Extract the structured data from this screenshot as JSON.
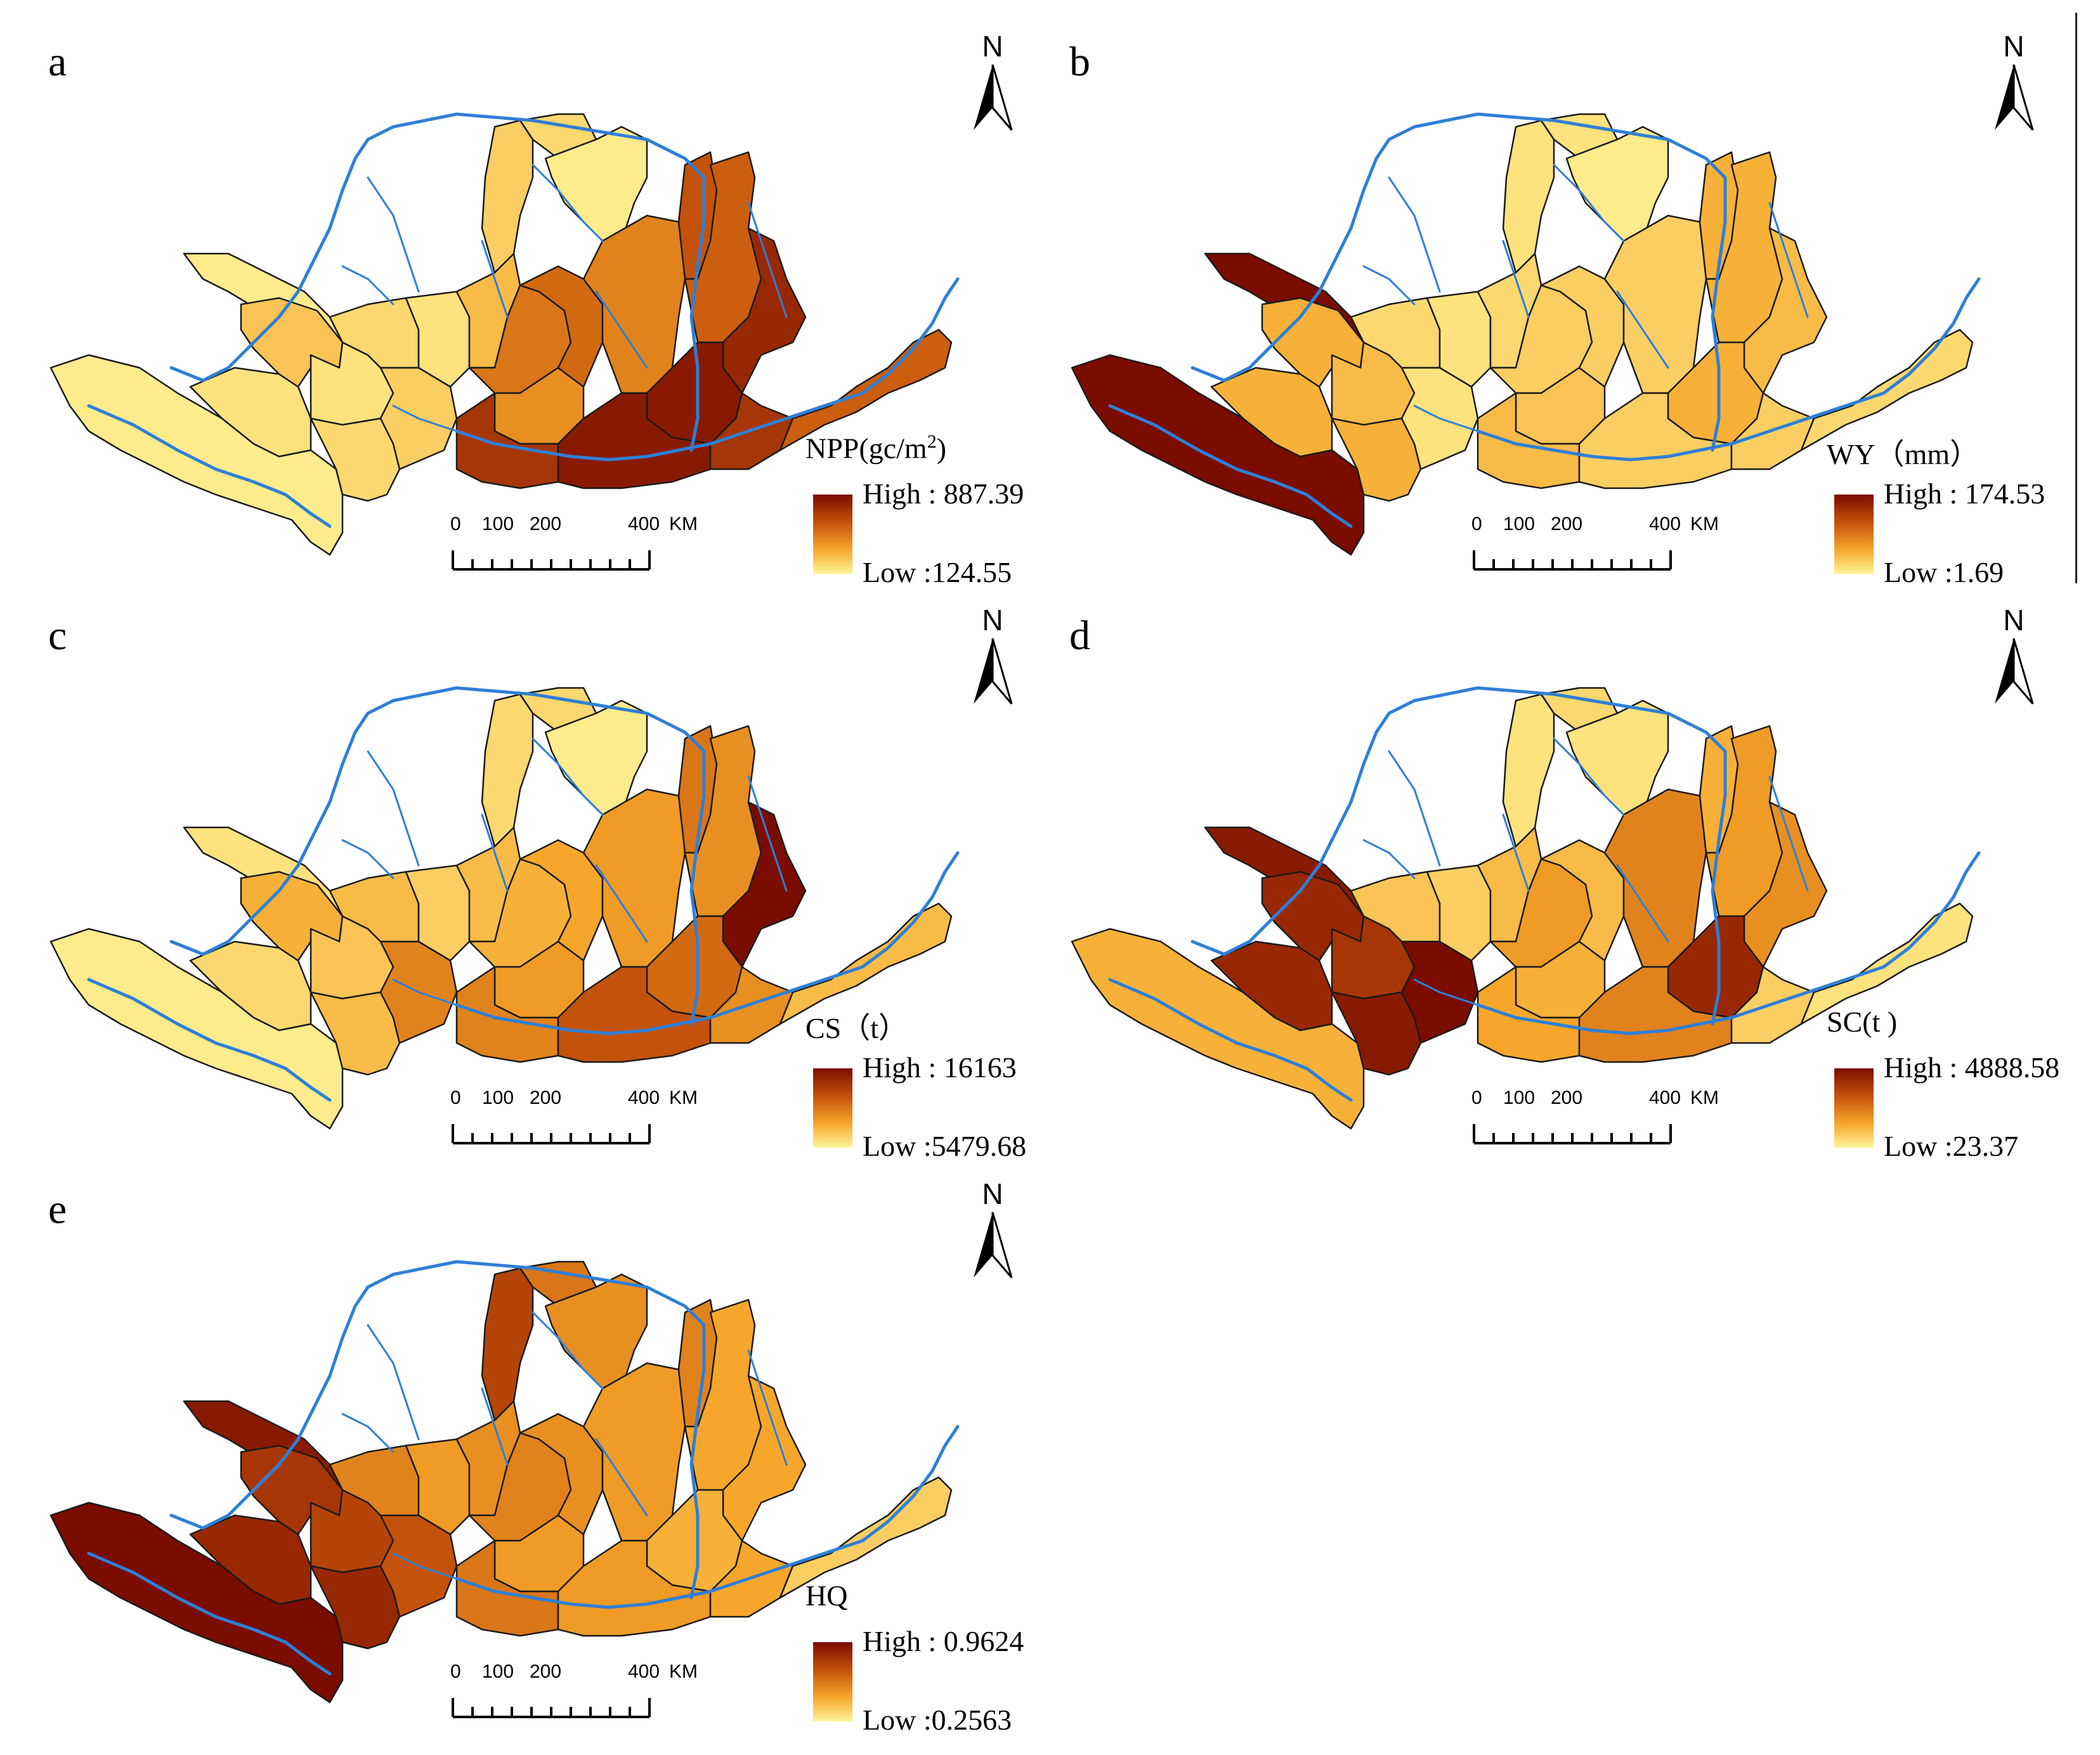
{
  "figure": {
    "scale_bar": {
      "ticks": [
        "0",
        "100",
        "200",
        "400"
      ],
      "unit": "KM"
    },
    "north_label": "N",
    "palette": {
      "low": "#fff59a",
      "mid_low": "#f6a72b",
      "mid_high": "#c4520a",
      "high": "#7a0c00"
    },
    "river_color": "#2f7fd6",
    "panels": [
      {
        "letter": "a",
        "legend": {
          "title": "NPP(gc/m",
          "title_sup": "2",
          "title_tail": ")",
          "high": "High : 887.39",
          "low": "Low :124.55"
        },
        "levels": [
          0.05,
          0.1,
          0.05,
          0.25,
          0.1,
          0.15,
          0.2,
          0.15,
          0.1,
          0.3,
          0.2,
          0.15,
          0.05,
          0.6,
          0.5,
          0.85,
          0.65,
          0.55,
          0.75,
          0.7,
          0.9,
          0.95,
          0.95,
          0.85,
          0.7
        ]
      },
      {
        "letter": "b",
        "legend": {
          "title": "WY（mm）",
          "title_sup": "",
          "title_tail": "",
          "high": "High : 174.53",
          "low": "Low :1.69"
        },
        "levels": [
          1.0,
          0.35,
          1.0,
          0.35,
          0.3,
          0.35,
          0.1,
          0.15,
          0.1,
          0.15,
          0.1,
          0.1,
          0.05,
          0.2,
          0.25,
          0.3,
          0.2,
          0.2,
          0.35,
          0.35,
          0.3,
          0.35,
          0.2,
          0.2,
          0.15
        ]
      },
      {
        "letter": "c",
        "legend": {
          "title": "CS（t）",
          "title_sup": "",
          "title_tail": "",
          "high": "High : 16163",
          "low": "Low :5479.68"
        },
        "levels": [
          0.05,
          0.15,
          0.1,
          0.35,
          0.25,
          0.3,
          0.55,
          0.3,
          0.2,
          0.3,
          0.15,
          0.15,
          0.05,
          0.35,
          0.45,
          0.55,
          0.4,
          0.45,
          0.6,
          0.5,
          1.0,
          0.65,
          0.75,
          0.5,
          0.3
        ]
      },
      {
        "letter": "d",
        "legend": {
          "title": "SC(t )",
          "title_sup": "",
          "title_tail": "",
          "high": "High : 4888.58",
          "low": "Low :23.37"
        },
        "levels": [
          0.35,
          0.9,
          0.95,
          0.9,
          0.85,
          0.95,
          1.0,
          0.25,
          0.2,
          0.3,
          0.1,
          0.15,
          0.1,
          0.45,
          0.35,
          0.4,
          0.3,
          0.55,
          0.35,
          0.45,
          0.5,
          0.9,
          0.55,
          0.2,
          0.1
        ]
      },
      {
        "letter": "e",
        "legend": {
          "title": "HQ",
          "title_sup": "",
          "title_tail": "",
          "high": "High : 0.9624",
          "low": "Low :0.2563"
        },
        "levels": [
          1.0,
          0.9,
          0.95,
          0.85,
          0.8,
          0.9,
          0.75,
          0.55,
          0.45,
          0.5,
          0.8,
          0.6,
          0.5,
          0.55,
          0.45,
          0.6,
          0.5,
          0.45,
          0.55,
          0.4,
          0.4,
          0.35,
          0.45,
          0.4,
          0.2
        ]
      }
    ]
  }
}
